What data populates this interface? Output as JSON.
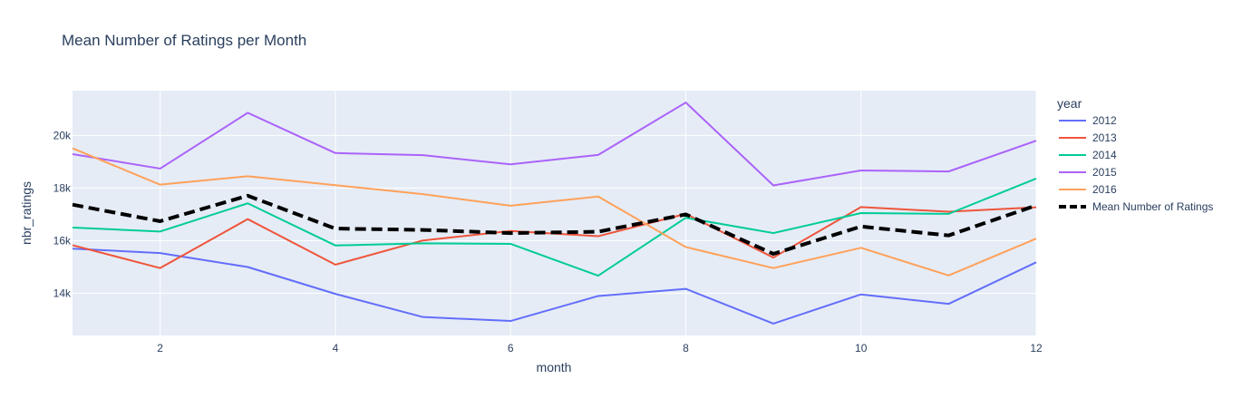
{
  "chart_data": {
    "type": "line",
    "title": "Mean Number of Ratings per Month",
    "xlabel": "month",
    "ylabel": "nbr_ratings",
    "xlim": [
      1,
      12
    ],
    "ylim": [
      12400,
      21700
    ],
    "xticks": [
      2,
      4,
      6,
      8,
      10,
      12
    ],
    "xtick_labels": [
      "2",
      "4",
      "6",
      "8",
      "10",
      "12"
    ],
    "yticks": [
      14000,
      16000,
      18000,
      20000
    ],
    "ytick_labels": [
      "14k",
      "16k",
      "18k",
      "20k"
    ],
    "grid": true,
    "plot_background": "#e5ecf6",
    "legend_title": "year",
    "legend_position": "right",
    "x": [
      1,
      2,
      3,
      4,
      5,
      6,
      7,
      8,
      9,
      10,
      11,
      12
    ],
    "series": [
      {
        "name": "2012",
        "color": "#636efa",
        "dash": false,
        "values": [
          15700,
          15530,
          15000,
          13980,
          13100,
          12950,
          13900,
          14170,
          12850,
          13960,
          13600,
          15180
        ]
      },
      {
        "name": "2013",
        "color": "#ef553b",
        "dash": false,
        "values": [
          15830,
          14960,
          16820,
          15090,
          16010,
          16370,
          16170,
          17020,
          15360,
          17280,
          17100,
          17270
        ]
      },
      {
        "name": "2014",
        "color": "#00cc96",
        "dash": false,
        "values": [
          16500,
          16350,
          17420,
          15820,
          15900,
          15880,
          14670,
          16870,
          16290,
          17050,
          17020,
          18360
        ]
      },
      {
        "name": "2015",
        "color": "#ab63fa",
        "dash": false,
        "values": [
          19290,
          18740,
          20860,
          19330,
          19250,
          18900,
          19260,
          21250,
          18100,
          18670,
          18630,
          19800
        ]
      },
      {
        "name": "2016",
        "color": "#ffa15a",
        "dash": false,
        "values": [
          19510,
          18130,
          18450,
          18110,
          17770,
          17330,
          17680,
          15760,
          14960,
          15730,
          14680,
          16080
        ]
      },
      {
        "name": "Mean Number of Ratings",
        "color": "#000000",
        "dash": true,
        "values": [
          17370,
          16740,
          17710,
          16460,
          16410,
          16290,
          16340,
          17000,
          15500,
          16540,
          16200,
          17340
        ]
      }
    ]
  }
}
